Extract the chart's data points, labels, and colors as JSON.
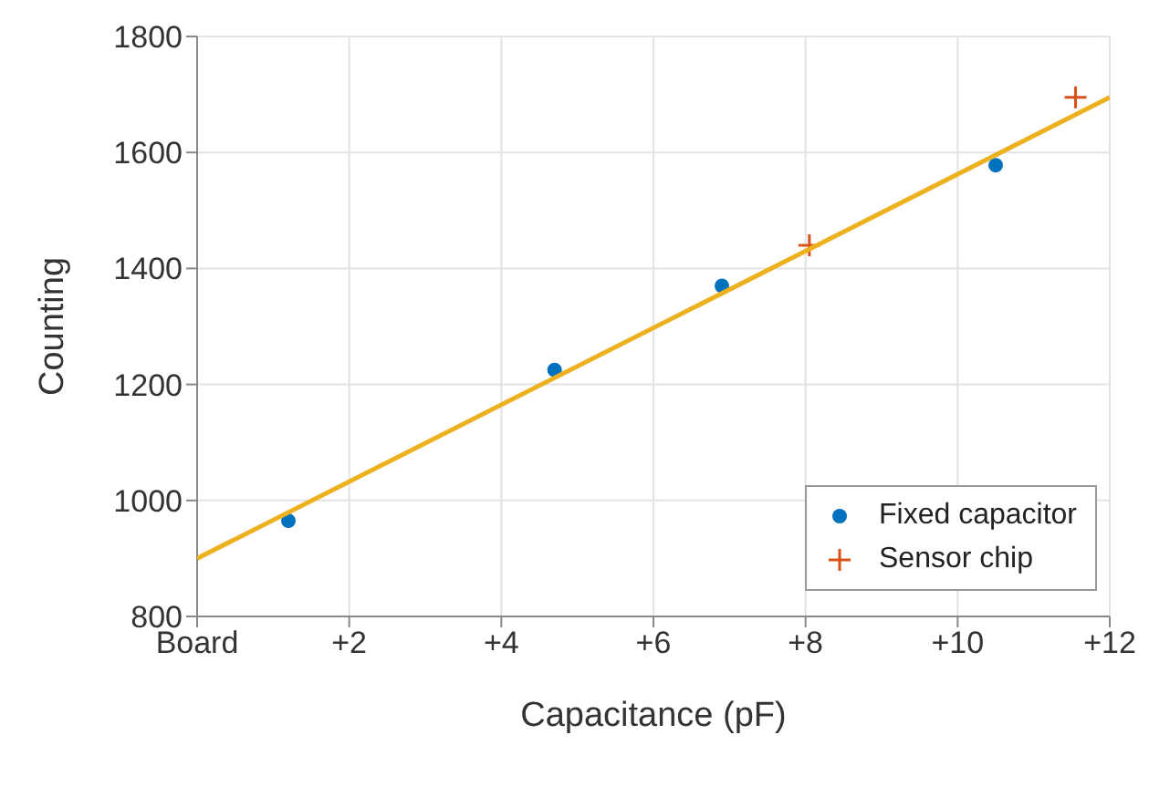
{
  "chart_data": {
    "type": "scatter",
    "xlabel": "Capacitance (pF)",
    "ylabel": "Counting",
    "xlim": [
      0,
      12
    ],
    "xticks": [
      {
        "value": 0,
        "label": "Board"
      },
      {
        "value": 2,
        "label": "+2"
      },
      {
        "value": 4,
        "label": "+4"
      },
      {
        "value": 6,
        "label": "+6"
      },
      {
        "value": 8,
        "label": "+8"
      },
      {
        "value": 10,
        "label": "+10"
      },
      {
        "value": 12,
        "label": "+12"
      }
    ],
    "ylim": [
      800,
      1800
    ],
    "yticks": [
      800,
      1000,
      1200,
      1400,
      1600,
      1800
    ],
    "grid": true,
    "legend": "bottom right",
    "series": [
      {
        "name": "Fixed capacitor",
        "marker": "circle",
        "color": "#0072bd",
        "x": [
          1.2,
          4.7,
          6.9,
          10.5
        ],
        "values": [
          965,
          1225,
          1370,
          1578
        ]
      },
      {
        "name": "Sensor chip",
        "marker": "cross",
        "color": "#d95319",
        "x": [
          8.05,
          11.55
        ],
        "values": [
          1440,
          1695
        ]
      },
      {
        "type": "line",
        "marker": "none",
        "line_style": "solid",
        "color": "#edb120",
        "x": [
          0,
          12
        ],
        "values": [
          900,
          1695
        ]
      }
    ]
  }
}
